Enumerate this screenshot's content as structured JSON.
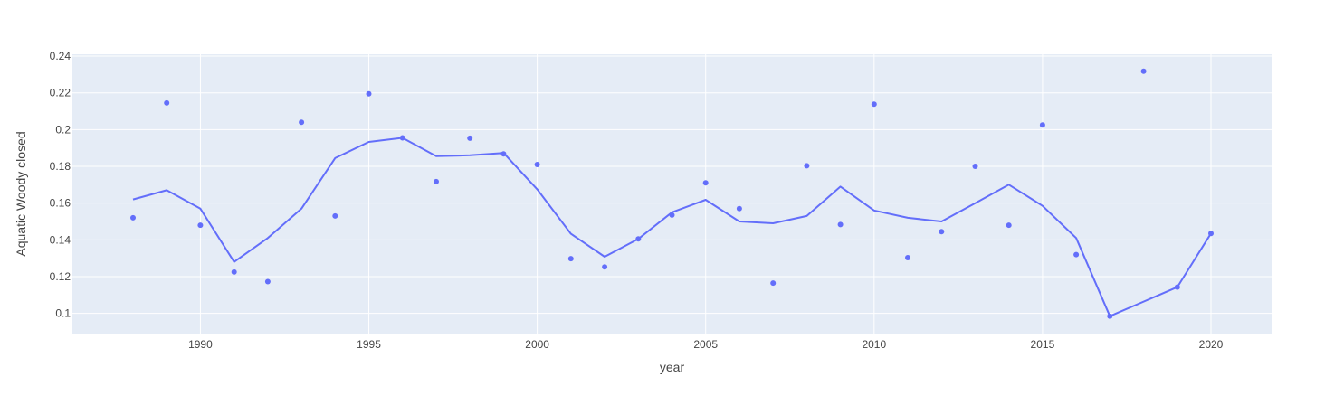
{
  "chart_data": {
    "type": "scatter",
    "title": "",
    "xlabel": "year",
    "ylabel": "Aquatic Woody closed",
    "xlim": [
      1986.2,
      2021.8
    ],
    "ylim": [
      0.089,
      0.241
    ],
    "x_ticks": [
      1990,
      1995,
      2000,
      2005,
      2010,
      2015,
      2020
    ],
    "y_ticks": [
      0.1,
      0.12,
      0.14,
      0.16,
      0.18,
      0.2,
      0.22,
      0.24
    ],
    "y_tick_labels": [
      "0.1",
      "0.12",
      "0.14",
      "0.16",
      "0.18",
      "0.2",
      "0.22",
      "0.24"
    ],
    "grid": true,
    "legend": "none",
    "colors": {
      "marker": "#636efa",
      "line": "#636efa",
      "plot_background": "#e5ecf6",
      "grid": "#ffffff"
    },
    "series": [
      {
        "mode": "markers",
        "x": [
          1988,
          1989,
          1990,
          1991,
          1992,
          1993,
          1994,
          1995,
          1996,
          1997,
          1998,
          1999,
          2000,
          2001,
          2002,
          2003,
          2004,
          2005,
          2006,
          2007,
          2008,
          2009,
          2010,
          2011,
          2012,
          2013,
          2014,
          2015,
          2016,
          2017,
          2018,
          2019,
          2020
        ],
        "y": [
          0.152,
          0.2145,
          0.148,
          0.1225,
          0.1173,
          0.204,
          0.153,
          0.2195,
          0.1955,
          0.1717,
          0.1953,
          0.1868,
          0.181,
          0.1298,
          0.1253,
          0.1405,
          0.1535,
          0.171,
          0.157,
          0.1165,
          0.1803,
          0.1483,
          0.2138,
          0.1303,
          0.1445,
          0.18,
          0.148,
          0.2025,
          0.132,
          0.0985,
          0.2318,
          0.1143,
          0.1435
        ]
      },
      {
        "mode": "lines",
        "x": [
          1988,
          1989,
          1990,
          1991,
          1992,
          1993,
          1994,
          1995,
          1996,
          1997,
          1998,
          1999,
          2000,
          2001,
          2002,
          2003,
          2004,
          2005,
          2006,
          2007,
          2008,
          2009,
          2010,
          2011,
          2012,
          2013,
          2014,
          2015,
          2016,
          2017,
          2019,
          2020
        ],
        "y": [
          0.162,
          0.167,
          0.157,
          0.128,
          0.141,
          0.157,
          0.1845,
          0.1933,
          0.1955,
          0.1855,
          0.186,
          0.1873,
          0.1675,
          0.1433,
          0.1308,
          0.1405,
          0.155,
          0.1618,
          0.15,
          0.149,
          0.153,
          0.169,
          0.156,
          0.152,
          0.15,
          0.16,
          0.17,
          0.1585,
          0.141,
          0.0985,
          0.1143,
          0.1435
        ]
      }
    ]
  }
}
